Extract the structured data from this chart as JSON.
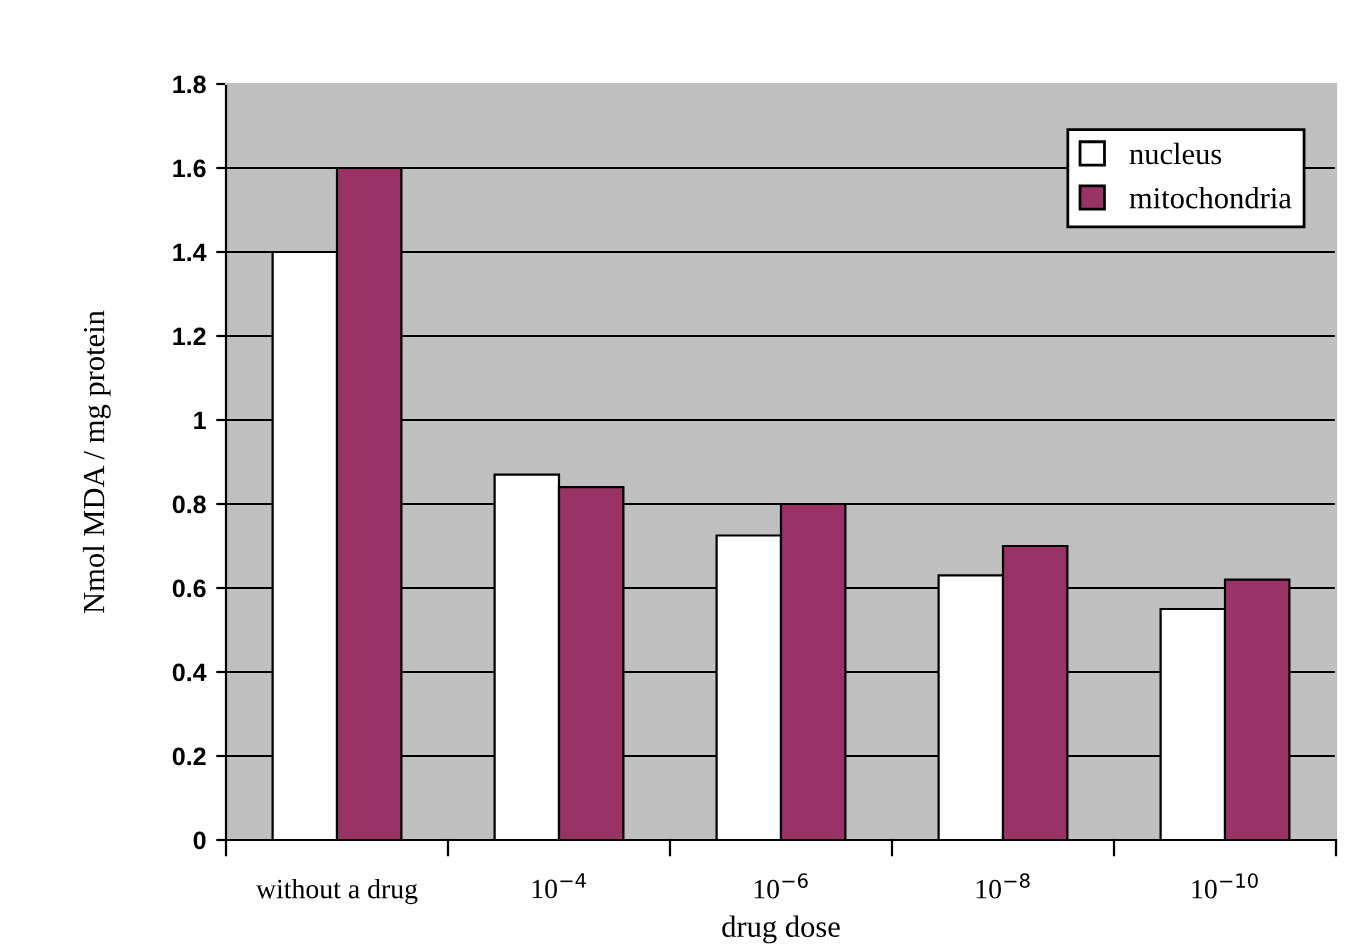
{
  "chart_data": {
    "type": "bar",
    "xlabel": "drug dose",
    "ylabel": "Nmol MDA / mg protein",
    "categories": [
      "without a drug",
      "10$^{−4}$",
      "10$^{−6}$",
      "10$^{−8}$",
      "10$^{−10}$"
    ],
    "series": [
      {
        "name": "nucleus",
        "color": "#ffffff",
        "values": [
          1.4,
          0.87,
          0.725,
          0.63,
          0.55
        ]
      },
      {
        "name": "mitochondria",
        "color": "#993366",
        "values": [
          1.6,
          0.84,
          0.8,
          0.7,
          0.62
        ]
      }
    ],
    "ylim": [
      0,
      1.8
    ],
    "yticks": [
      0,
      0.2,
      0.4,
      0.6,
      0.8,
      1,
      1.2,
      1.4,
      1.6,
      1.8
    ],
    "grid": "y",
    "legend": "top right"
  }
}
